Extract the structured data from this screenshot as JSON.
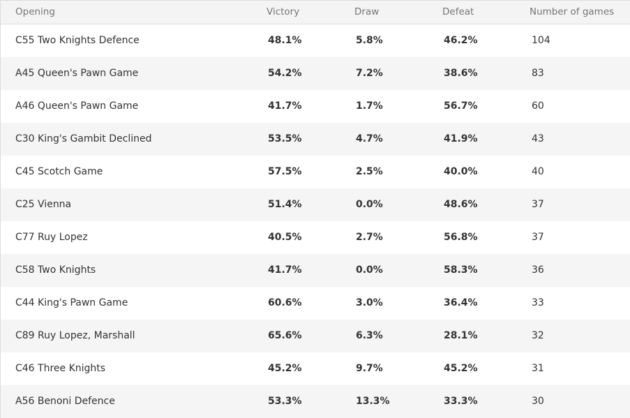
{
  "table": {
    "headers": {
      "opening": "Opening",
      "victory": "Victory",
      "draw": "Draw",
      "defeat": "Defeat",
      "games": "Number of games"
    },
    "rows": [
      {
        "opening": "C55 Two Knights Defence",
        "victory": "48.1%",
        "draw": "5.8%",
        "defeat": "46.2%",
        "games": "104"
      },
      {
        "opening": "A45 Queen's Pawn Game",
        "victory": "54.2%",
        "draw": "7.2%",
        "defeat": "38.6%",
        "games": "83"
      },
      {
        "opening": "A46 Queen's Pawn Game",
        "victory": "41.7%",
        "draw": "1.7%",
        "defeat": "56.7%",
        "games": "60"
      },
      {
        "opening": "C30 King's Gambit Declined",
        "victory": "53.5%",
        "draw": "4.7%",
        "defeat": "41.9%",
        "games": "43"
      },
      {
        "opening": "C45 Scotch Game",
        "victory": "57.5%",
        "draw": "2.5%",
        "defeat": "40.0%",
        "games": "40"
      },
      {
        "opening": "C25 Vienna",
        "victory": "51.4%",
        "draw": "0.0%",
        "defeat": "48.6%",
        "games": "37"
      },
      {
        "opening": "C77 Ruy Lopez",
        "victory": "40.5%",
        "draw": "2.7%",
        "defeat": "56.8%",
        "games": "37"
      },
      {
        "opening": "C58 Two Knights",
        "victory": "41.7%",
        "draw": "0.0%",
        "defeat": "58.3%",
        "games": "36"
      },
      {
        "opening": "C44 King's Pawn Game",
        "victory": "60.6%",
        "draw": "3.0%",
        "defeat": "36.4%",
        "games": "33"
      },
      {
        "opening": "C89 Ruy Lopez, Marshall",
        "victory": "65.6%",
        "draw": "6.3%",
        "defeat": "28.1%",
        "games": "32"
      },
      {
        "opening": "C46 Three Knights",
        "victory": "45.2%",
        "draw": "9.7%",
        "defeat": "45.2%",
        "games": "31"
      },
      {
        "opening": "A56 Benoni Defence",
        "victory": "53.3%",
        "draw": "13.3%",
        "defeat": "33.3%",
        "games": "30"
      }
    ]
  }
}
